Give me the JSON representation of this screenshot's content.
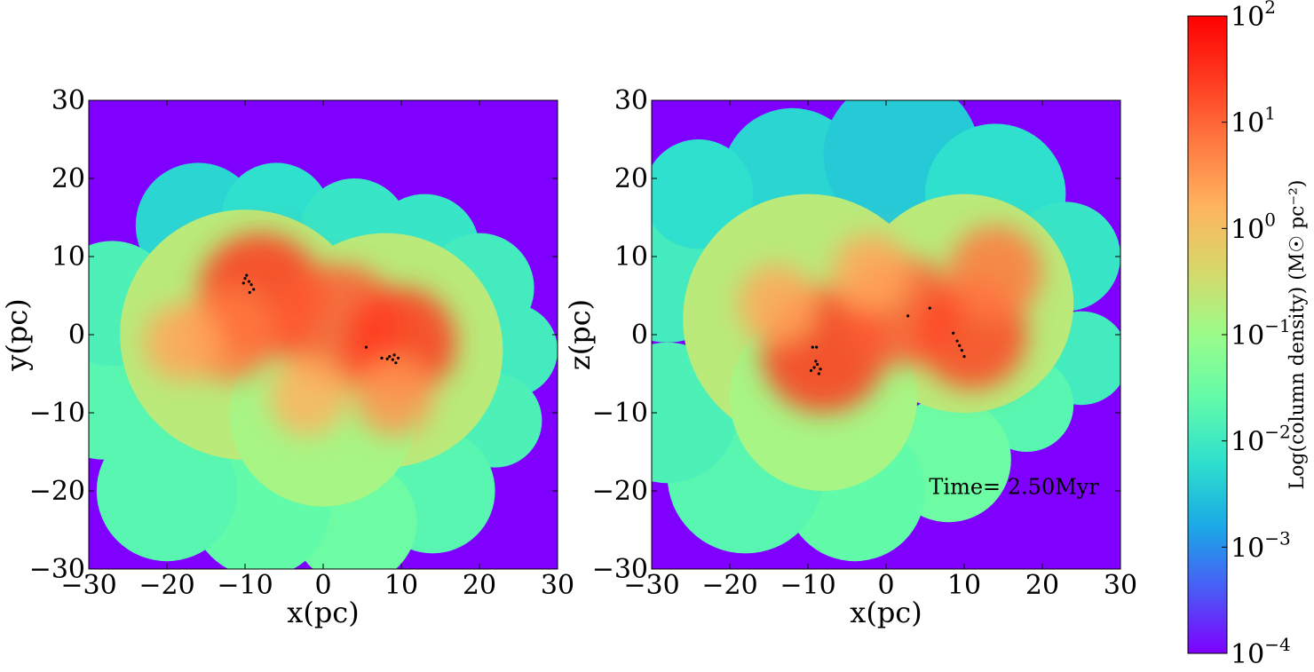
{
  "colors": {
    "background": "#7f00ff",
    "rainbow": [
      "#7f00ff",
      "#4a5bf6",
      "#1aa9e6",
      "#2ee0cd",
      "#62fba9",
      "#9bfc8a",
      "#d6d86a",
      "#ffb45f",
      "#ff7a41",
      "#ff3a20",
      "#ff0000"
    ],
    "star": "#000000"
  },
  "chart_data": [
    {
      "type": "heatmap",
      "id": "panel-xy",
      "xlabel": "x(pc)",
      "ylabel": "y(pc)",
      "xlim": [
        -30,
        30
      ],
      "ylim": [
        -30,
        30
      ],
      "xticks": [
        "−30",
        "−20",
        "−10",
        "0",
        "10",
        "20",
        "30"
      ],
      "yticks": [
        "30",
        "20",
        "10",
        "0",
        "−10",
        "−20",
        "−30"
      ],
      "xtick_values": [
        -30,
        -20,
        -10,
        0,
        10,
        20,
        30
      ],
      "ytick_values": [
        30,
        20,
        10,
        0,
        -10,
        -20,
        -30
      ],
      "cloud_blobs": [
        {
          "x": -16,
          "y": 14,
          "r": 8,
          "level": 0.28
        },
        {
          "x": -6,
          "y": 15,
          "r": 7,
          "level": 0.3
        },
        {
          "x": 4,
          "y": 13,
          "r": 7,
          "level": 0.32
        },
        {
          "x": 13,
          "y": 11,
          "r": 7,
          "level": 0.32
        },
        {
          "x": 20,
          "y": 6,
          "r": 7,
          "level": 0.34
        },
        {
          "x": 24,
          "y": -2,
          "r": 6,
          "level": 0.34
        },
        {
          "x": 22,
          "y": -11,
          "r": 6,
          "level": 0.36
        },
        {
          "x": 14,
          "y": -20,
          "r": 8,
          "level": 0.38
        },
        {
          "x": 4,
          "y": -24,
          "r": 8,
          "level": 0.42
        },
        {
          "x": -8,
          "y": -22,
          "r": 9,
          "level": 0.4
        },
        {
          "x": -20,
          "y": -20,
          "r": 9,
          "level": 0.38
        },
        {
          "x": -28,
          "y": -8,
          "r": 8,
          "level": 0.38
        },
        {
          "x": -27,
          "y": 4,
          "r": 8,
          "level": 0.36
        },
        {
          "x": -10,
          "y": 0,
          "r": 16,
          "level": 0.55
        },
        {
          "x": 8,
          "y": -2,
          "r": 15,
          "level": 0.55
        },
        {
          "x": 0,
          "y": -10,
          "r": 12,
          "level": 0.52
        }
      ],
      "dense_blobs": [
        {
          "x": -8,
          "y": 5,
          "r": 8,
          "level": 0.9
        },
        {
          "x": 2,
          "y": 1,
          "r": 8,
          "level": 0.85
        },
        {
          "x": 10,
          "y": -1,
          "r": 7,
          "level": 0.9
        },
        {
          "x": -12,
          "y": 0,
          "r": 6,
          "level": 0.8
        },
        {
          "x": 9,
          "y": -8,
          "r": 5,
          "level": 0.75
        },
        {
          "x": -2,
          "y": -8,
          "r": 5,
          "level": 0.7
        },
        {
          "x": -18,
          "y": -1,
          "r": 5,
          "level": 0.72
        }
      ],
      "stars": [
        {
          "x": -10,
          "y": 7.2
        },
        {
          "x": -9.5,
          "y": 6.8
        },
        {
          "x": -9.2,
          "y": 6.4
        },
        {
          "x": -9.8,
          "y": 7.6
        },
        {
          "x": -10.2,
          "y": 6.6
        },
        {
          "x": -8.9,
          "y": 5.8
        },
        {
          "x": -9.4,
          "y": 5.4
        },
        {
          "x": 8.5,
          "y": -2.8
        },
        {
          "x": 8.9,
          "y": -3.2
        },
        {
          "x": 9.1,
          "y": -2.6
        },
        {
          "x": 9.3,
          "y": -3.6
        },
        {
          "x": 8.2,
          "y": -3.1
        },
        {
          "x": 9.6,
          "y": -3.0
        },
        {
          "x": 5.5,
          "y": -1.6
        },
        {
          "x": 7.5,
          "y": -3.0
        }
      ]
    },
    {
      "type": "heatmap",
      "id": "panel-xz",
      "xlabel": "x(pc)",
      "ylabel": "z(pc)",
      "xlim": [
        -30,
        30
      ],
      "ylim": [
        -30,
        30
      ],
      "xticks": [
        "−30",
        "−20",
        "−10",
        "0",
        "10",
        "20",
        "30"
      ],
      "yticks": [
        "30",
        "20",
        "10",
        "0",
        "−10",
        "−20",
        "−30"
      ],
      "xtick_values": [
        -30,
        -20,
        -10,
        0,
        10,
        20,
        30
      ],
      "ytick_values": [
        30,
        20,
        10,
        0,
        -10,
        -20,
        -30
      ],
      "annotation": "Time= 2.50Myr",
      "annotation_pos": {
        "x": 5.5,
        "y": -19.5
      },
      "cloud_blobs": [
        {
          "x": -12,
          "y": 20,
          "r": 9,
          "level": 0.28
        },
        {
          "x": 2,
          "y": 23,
          "r": 10,
          "level": 0.26
        },
        {
          "x": 14,
          "y": 18,
          "r": 9,
          "level": 0.3
        },
        {
          "x": 23,
          "y": 10,
          "r": 7,
          "level": 0.32
        },
        {
          "x": 25,
          "y": -3,
          "r": 6,
          "level": 0.34
        },
        {
          "x": 18,
          "y": -9,
          "r": 6,
          "level": 0.38
        },
        {
          "x": 8,
          "y": -16,
          "r": 8,
          "level": 0.42
        },
        {
          "x": -4,
          "y": -20,
          "r": 9,
          "level": 0.4
        },
        {
          "x": -18,
          "y": -18,
          "r": 10,
          "level": 0.38
        },
        {
          "x": -28,
          "y": -10,
          "r": 9,
          "level": 0.36
        },
        {
          "x": -28,
          "y": 8,
          "r": 9,
          "level": 0.34
        },
        {
          "x": -24,
          "y": 18,
          "r": 7,
          "level": 0.3
        },
        {
          "x": -10,
          "y": 2,
          "r": 16,
          "level": 0.55
        },
        {
          "x": 10,
          "y": 4,
          "r": 14,
          "level": 0.55
        },
        {
          "x": -8,
          "y": -8,
          "r": 12,
          "level": 0.52
        }
      ],
      "dense_blobs": [
        {
          "x": -8,
          "y": -2,
          "r": 8,
          "level": 0.9
        },
        {
          "x": 2,
          "y": 3,
          "r": 7,
          "level": 0.85
        },
        {
          "x": 11,
          "y": 0,
          "r": 7,
          "level": 0.88
        },
        {
          "x": 14,
          "y": 8,
          "r": 6,
          "level": 0.8
        },
        {
          "x": -14,
          "y": 4,
          "r": 5,
          "level": 0.72
        },
        {
          "x": -2,
          "y": 8,
          "r": 5,
          "level": 0.72
        }
      ],
      "stars": [
        {
          "x": -9.2,
          "y": -4.2
        },
        {
          "x": -8.8,
          "y": -3.8
        },
        {
          "x": -9.6,
          "y": -4.6
        },
        {
          "x": -8.4,
          "y": -4.4
        },
        {
          "x": -9.0,
          "y": -3.4
        },
        {
          "x": -8.6,
          "y": -5.0
        },
        {
          "x": -9.4,
          "y": -1.6
        },
        {
          "x": -8.9,
          "y": -1.6
        },
        {
          "x": 9.1,
          "y": -0.8
        },
        {
          "x": 9.4,
          "y": -1.4
        },
        {
          "x": 9.7,
          "y": -2.0
        },
        {
          "x": 10.0,
          "y": -2.8
        },
        {
          "x": 8.6,
          "y": 0.2
        },
        {
          "x": 5.6,
          "y": 3.4
        },
        {
          "x": 2.8,
          "y": 2.4
        }
      ]
    }
  ],
  "colorbar": {
    "label": "Log(column density) (M☉ pc⁻²)",
    "scale": "log",
    "ticks": [
      {
        "base": "10",
        "exp": "2",
        "value": 2
      },
      {
        "base": "10",
        "exp": "1",
        "value": 1
      },
      {
        "base": "10",
        "exp": "0",
        "value": 0
      },
      {
        "base": "10",
        "exp": "−1",
        "value": -1
      },
      {
        "base": "10",
        "exp": "−2",
        "value": -2
      },
      {
        "base": "10",
        "exp": "−3",
        "value": -3
      },
      {
        "base": "10",
        "exp": "−4",
        "value": -4
      }
    ],
    "range": [
      -4,
      2
    ]
  }
}
